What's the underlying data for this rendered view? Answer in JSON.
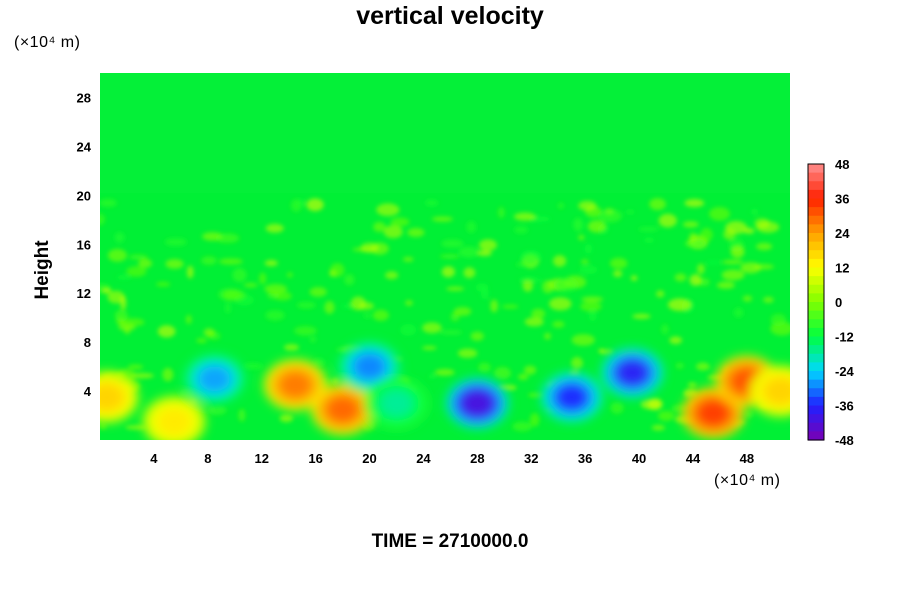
{
  "chart_data": {
    "type": "heatmap",
    "title": "vertical velocity",
    "ylabel": "Height",
    "y_unit_label": "(×10⁴ m)",
    "x_unit_label": "(×10⁴ m)",
    "xlim": [
      0,
      51.2
    ],
    "ylim": [
      0,
      30
    ],
    "x_ticks": [
      "4",
      "8",
      "12",
      "16",
      "20",
      "24",
      "28",
      "32",
      "36",
      "40",
      "44",
      "48"
    ],
    "y_ticks": [
      "4",
      "8",
      "12",
      "16",
      "20",
      "24",
      "28"
    ],
    "colorbar": {
      "range": [
        -48,
        48
      ],
      "ticks": [
        "48",
        "36",
        "24",
        "12",
        "0",
        "-12",
        "-24",
        "-36",
        "-48"
      ],
      "colors": [
        "#7a00b4",
        "#2020ff",
        "#00d8ff",
        "#00ff40",
        "#80ff00",
        "#ffff00",
        "#ffa000",
        "#ff2000",
        "#ff9090"
      ]
    },
    "features": [
      {
        "x": 0.5,
        "y": 3.5,
        "value": 18
      },
      {
        "x": 5.5,
        "y": 1.5,
        "value": 15
      },
      {
        "x": 8.5,
        "y": 5.0,
        "value": -28
      },
      {
        "x": 14.5,
        "y": 4.5,
        "value": 28
      },
      {
        "x": 18.0,
        "y": 2.5,
        "value": 30
      },
      {
        "x": 20.0,
        "y": 6.0,
        "value": -30
      },
      {
        "x": 22.0,
        "y": 3.0,
        "value": -18
      },
      {
        "x": 28.0,
        "y": 3.0,
        "value": -42
      },
      {
        "x": 35.0,
        "y": 3.5,
        "value": -36
      },
      {
        "x": 39.5,
        "y": 5.5,
        "value": -38
      },
      {
        "x": 45.5,
        "y": 2.2,
        "value": 34
      },
      {
        "x": 48.0,
        "y": 4.8,
        "value": 32
      },
      {
        "x": 50.5,
        "y": 4.0,
        "value": 18
      }
    ]
  },
  "footer": {
    "time_label": "TIME = 2710000.0"
  }
}
